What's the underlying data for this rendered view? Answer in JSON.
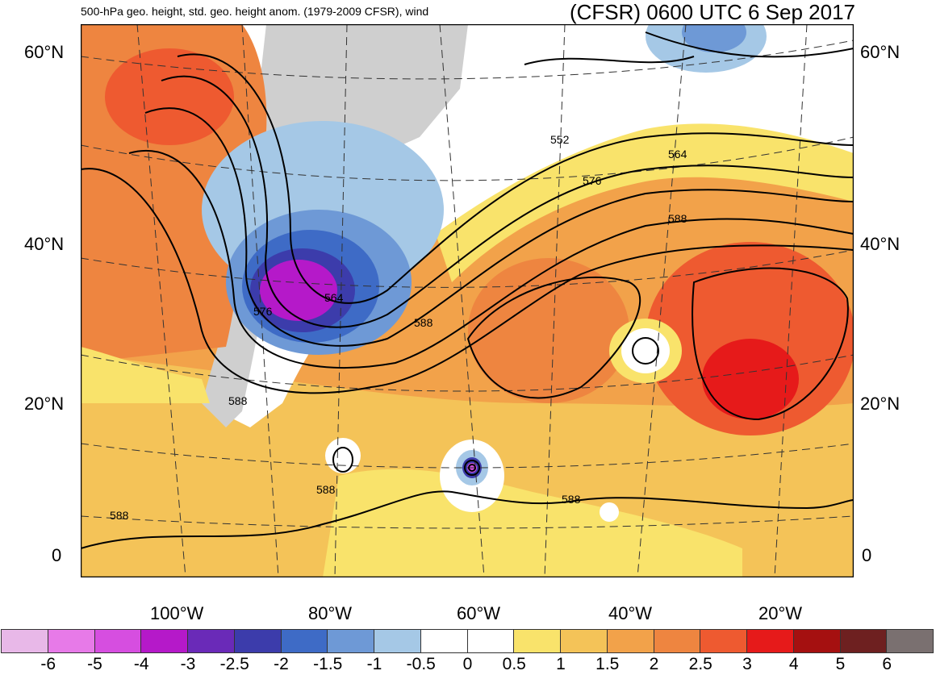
{
  "header": {
    "left_title": "500-hPa geo. height, std. geo. height anom. (1979-2009 CFSR), wind",
    "right_title": "(CFSR) 0600 UTC 6 Sep 2017"
  },
  "axes": {
    "lat_labels_left": [
      "60°N",
      "40°N",
      "20°N",
      "0"
    ],
    "lat_labels_right": [
      "60°N",
      "40°N",
      "20°N",
      "0"
    ],
    "lon_labels": [
      "100°W",
      "80°W",
      "60°W",
      "40°W",
      "20°W"
    ]
  },
  "contour_labels": [
    "552",
    "564",
    "576",
    "588",
    "564",
    "576",
    "588",
    "588",
    "588",
    "588",
    "588"
  ],
  "colorbar": {
    "colors": [
      "#e8b8e8",
      "#e77ae8",
      "#d64ee0",
      "#b519c9",
      "#6a2ab8",
      "#3c3cab",
      "#3e6bc6",
      "#6e99d6",
      "#a5c8e6",
      "#ffffff",
      "#ffffff",
      "#f9e36b",
      "#f4c358",
      "#f2a24a",
      "#ee8540",
      "#ee5a30",
      "#e61a1a",
      "#a51010",
      "#6e2020",
      "#7a7070"
    ],
    "labels": [
      "-6",
      "-5",
      "-4",
      "-3",
      "-2.5",
      "-2",
      "-1.5",
      "-1",
      "-0.5",
      "0",
      "0.5",
      "1",
      "1.5",
      "2",
      "2.5",
      "3",
      "4",
      "5",
      "6"
    ]
  }
}
